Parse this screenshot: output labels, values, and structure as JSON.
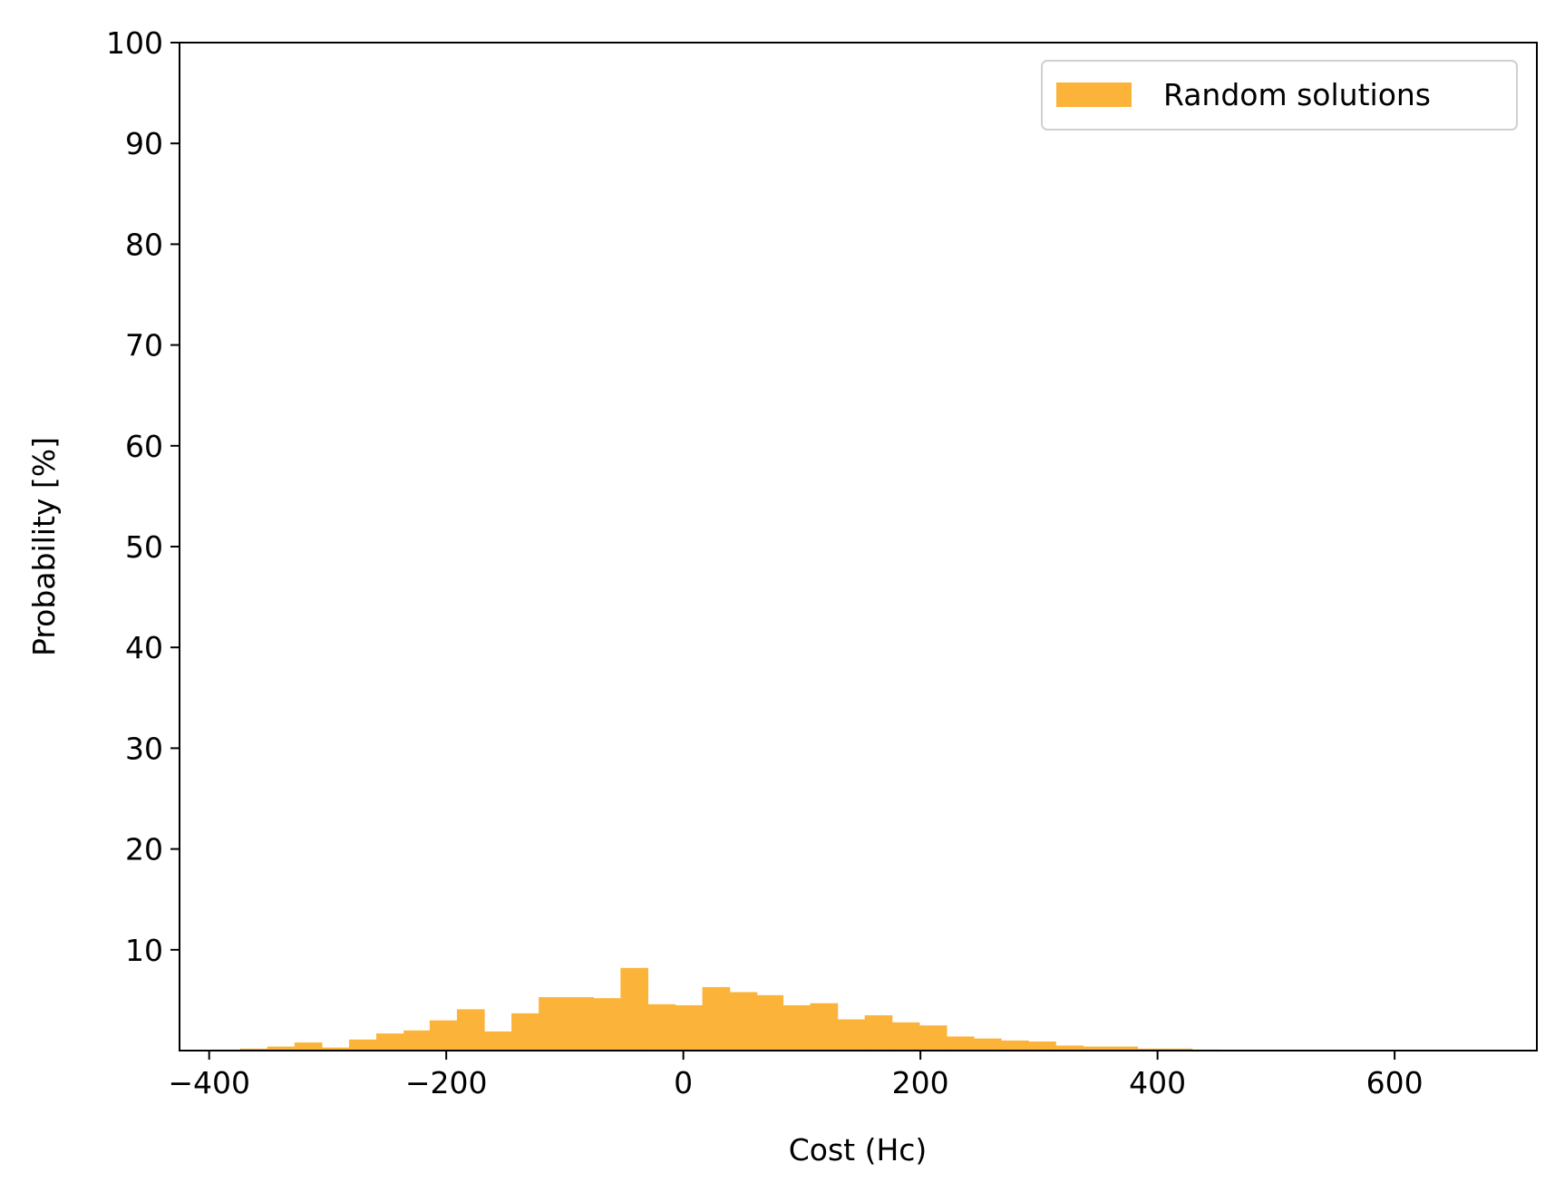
{
  "chart_data": {
    "type": "bar",
    "title": "",
    "xlabel": "Cost (Hc)",
    "ylabel": "Probability [%]",
    "xlim": [
      -425,
      720
    ],
    "ylim": [
      0,
      100
    ],
    "xticks": [
      -400,
      -200,
      0,
      200,
      400,
      600
    ],
    "xtick_labels": [
      "−400",
      "−200",
      "0",
      "200",
      "400",
      "600"
    ],
    "yticks": [
      10,
      20,
      30,
      40,
      50,
      60,
      70,
      80,
      90,
      100
    ],
    "ytick_labels": [
      "10",
      "20",
      "30",
      "40",
      "50",
      "60",
      "70",
      "80",
      "90",
      "100"
    ],
    "grid": false,
    "legend": {
      "position": "top-right",
      "entries": [
        "Random solutions"
      ]
    },
    "series": [
      {
        "name": "Random solutions",
        "color": "#fbb33a",
        "bin_edges": [
          -397,
          -374,
          -351,
          -328,
          -305,
          -282,
          -259,
          -236,
          -214,
          -191,
          -168,
          -145,
          -122,
          -99,
          -76,
          -53,
          -30,
          -7,
          16,
          39,
          62,
          84,
          107,
          130,
          153,
          176,
          199,
          222,
          245,
          268,
          291,
          314,
          337,
          360,
          383,
          406,
          429,
          452
        ],
        "values": [
          0.1,
          0.2,
          0.4,
          0.8,
          0.3,
          1.1,
          1.7,
          2.0,
          3.0,
          4.1,
          1.9,
          3.7,
          5.3,
          5.3,
          5.2,
          8.2,
          4.6,
          4.5,
          6.3,
          5.8,
          5.5,
          4.5,
          4.7,
          3.1,
          3.5,
          2.8,
          2.5,
          1.4,
          1.2,
          1.0,
          0.9,
          0.5,
          0.4,
          0.4,
          0.2,
          0.2,
          0.1
        ]
      }
    ]
  }
}
